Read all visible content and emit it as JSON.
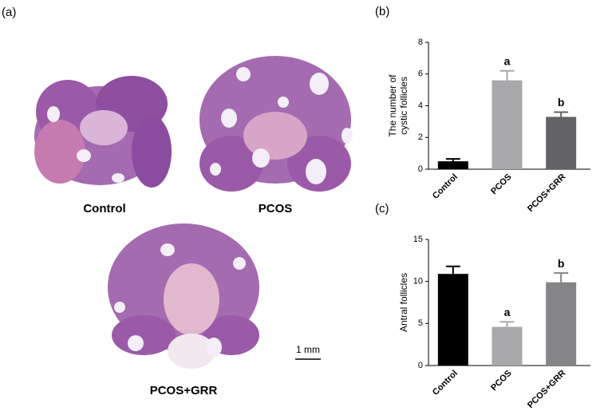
{
  "figure": {
    "panel_label": "(a)",
    "captions": [
      "Control",
      "PCOS",
      "PCOS+GRR"
    ],
    "scale_bar": "1 mm"
  },
  "chart_data": [
    {
      "type": "bar",
      "panel_label": "(b)",
      "ylabel_lines": [
        "The number of",
        "cystic follicles"
      ],
      "categories": [
        "Control",
        "PCOS",
        "PCOS+GRR"
      ],
      "values": [
        0.5,
        5.6,
        3.3
      ],
      "errors": [
        0.15,
        0.6,
        0.3
      ],
      "colors": [
        "#000000",
        "#a8a8aa",
        "#636365"
      ],
      "significance": [
        null,
        "a",
        "b"
      ],
      "ylim": [
        0,
        8
      ],
      "yticks": [
        0,
        2,
        4,
        6,
        8
      ]
    },
    {
      "type": "bar",
      "panel_label": "(c)",
      "ylabel_lines": [
        "Antral follicles"
      ],
      "categories": [
        "Control",
        "PCOS",
        "PCOS+GRR"
      ],
      "values": [
        10.9,
        4.6,
        9.9
      ],
      "errors": [
        0.9,
        0.6,
        1.1
      ],
      "colors": [
        "#000000",
        "#a8a8aa",
        "#858587"
      ],
      "significance": [
        null,
        "a",
        "b"
      ],
      "ylim": [
        0,
        15
      ],
      "yticks": [
        0,
        5,
        10,
        15
      ]
    }
  ]
}
